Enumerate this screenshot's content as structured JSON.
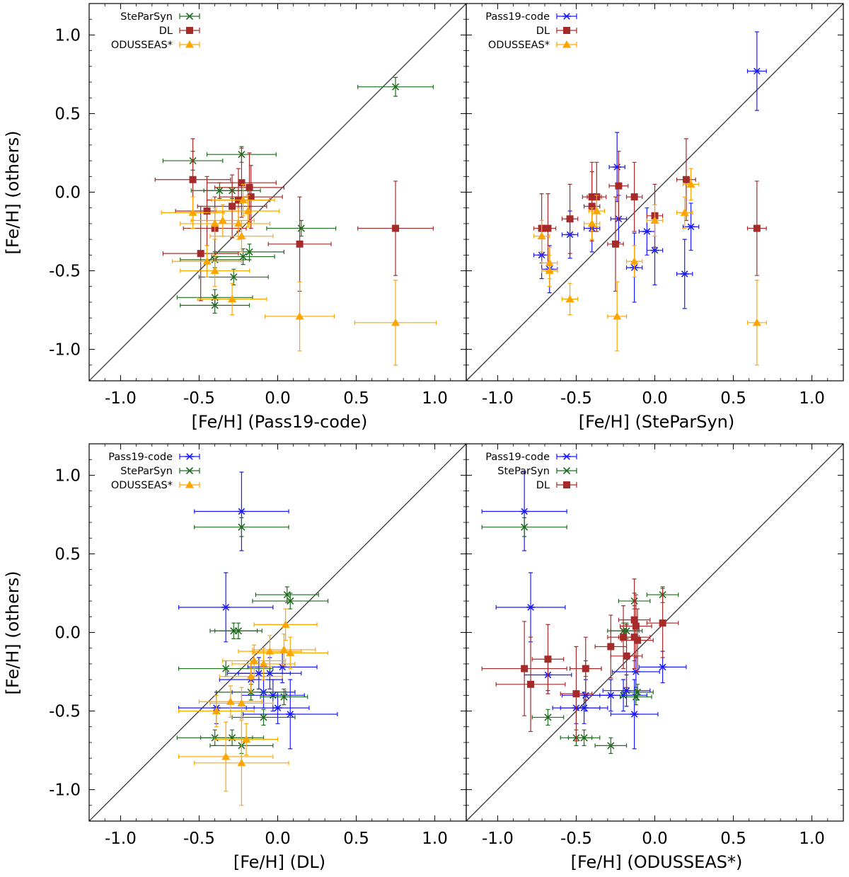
{
  "chart_data": [
    {
      "type": "scatter",
      "xlabel": "[Fe/H] (Pass19-code)",
      "ylabel": "[Fe/H] (others)",
      "xlim": [
        -1.2,
        1.2
      ],
      "ylim": [
        -1.2,
        1.2
      ],
      "xticks": [
        "-1.0",
        "-0.5",
        "0.0",
        "0.5",
        "1.0"
      ],
      "yticks": [
        "-1.0",
        "-0.5",
        "0.0",
        "0.5",
        "1.0"
      ],
      "identity_line": true,
      "legend_position": "top-left",
      "series": [
        {
          "name": "SteParSyn",
          "color": "#1f6b1f",
          "marker": "x",
          "points": [
            [
              0.75,
              0.67,
              0.24,
              0.06
            ],
            [
              -0.54,
              0.2,
              0.19,
              0.06
            ],
            [
              -0.23,
              0.24,
              0.22,
              0.05
            ],
            [
              -0.29,
              0.01,
              0.18,
              0.05
            ],
            [
              -0.37,
              0.01,
              0.18,
              0.05
            ],
            [
              0.15,
              -0.23,
              0.22,
              0.05
            ],
            [
              -0.4,
              -0.67,
              0.24,
              0.05
            ],
            [
              -0.4,
              -0.72,
              0.22,
              0.05
            ],
            [
              -0.28,
              -0.54,
              0.22,
              0.05
            ],
            [
              -0.18,
              -0.38,
              0.22,
              0.05
            ],
            [
              -0.22,
              -0.41,
              0.2,
              0.05
            ],
            [
              -0.4,
              -0.43,
              0.22,
              0.05
            ]
          ]
        },
        {
          "name": "DL",
          "color": "#a52a2a",
          "marker": "square",
          "points": [
            [
              -0.54,
              0.08,
              0.24,
              0.26
            ],
            [
              0.75,
              -0.23,
              0.24,
              0.3
            ],
            [
              0.14,
              -0.33,
              0.2,
              0.3
            ],
            [
              -0.49,
              -0.39,
              0.24,
              0.3
            ],
            [
              -0.23,
              0.06,
              0.22,
              0.22
            ],
            [
              -0.18,
              0.03,
              0.22,
              0.22
            ],
            [
              -0.29,
              -0.09,
              0.22,
              0.2
            ],
            [
              -0.25,
              -0.05,
              0.2,
              0.2
            ],
            [
              -0.4,
              -0.23,
              0.2,
              0.2
            ],
            [
              -0.17,
              -0.03,
              0.2,
              0.2
            ],
            [
              -0.45,
              -0.12,
              0.2,
              0.22
            ]
          ]
        },
        {
          "name": "ODUSSEAS*",
          "color": "#ffa500",
          "marker": "triangle",
          "points": [
            [
              0.75,
              -0.83,
              0.26,
              0.27
            ],
            [
              0.14,
              -0.79,
              0.22,
              0.22
            ],
            [
              -0.54,
              -0.13,
              0.2,
              0.1
            ],
            [
              -0.45,
              -0.44,
              0.22,
              0.1
            ],
            [
              -0.4,
              -0.5,
              0.22,
              0.1
            ],
            [
              -0.29,
              -0.68,
              0.22,
              0.1
            ],
            [
              -0.23,
              -0.28,
              0.2,
              0.1
            ],
            [
              -0.35,
              -0.18,
              0.2,
              0.1
            ],
            [
              -0.19,
              -0.12,
              0.2,
              0.1
            ],
            [
              -0.25,
              -0.2,
              0.2,
              0.1
            ],
            [
              -0.22,
              -0.05,
              0.2,
              0.1
            ],
            [
              -0.4,
              -0.2,
              0.22,
              0.1
            ]
          ]
        }
      ]
    },
    {
      "type": "scatter",
      "xlabel": "[Fe/H] (SteParSyn)",
      "ylabel": "",
      "xlim": [
        -1.2,
        1.2
      ],
      "ylim": [
        -1.2,
        1.2
      ],
      "xticks": [
        "-1.0",
        "-0.5",
        "0.0",
        "0.5",
        "1.0"
      ],
      "yticks": [],
      "identity_line": true,
      "legend_position": "top-left",
      "series": [
        {
          "name": "Pass19-code",
          "color": "#1a1aff",
          "marker": "star",
          "points": [
            [
              0.65,
              0.77,
              0.06,
              0.25
            ],
            [
              0.19,
              -0.52,
              0.05,
              0.22
            ],
            [
              0.23,
              -0.22,
              0.05,
              0.15
            ],
            [
              -0.24,
              0.16,
              0.05,
              0.22
            ],
            [
              -0.72,
              -0.4,
              0.05,
              0.15
            ],
            [
              -0.54,
              -0.27,
              0.05,
              0.15
            ],
            [
              -0.4,
              -0.23,
              0.05,
              0.15
            ],
            [
              -0.67,
              -0.49,
              0.05,
              0.15
            ],
            [
              0.0,
              -0.37,
              0.05,
              0.22
            ],
            [
              -0.05,
              -0.25,
              0.05,
              0.15
            ],
            [
              -0.13,
              -0.48,
              0.05,
              0.22
            ],
            [
              -0.23,
              -0.17,
              0.05,
              0.15
            ]
          ]
        },
        {
          "name": "DL",
          "color": "#a52a2a",
          "marker": "square",
          "points": [
            [
              0.2,
              0.08,
              0.06,
              0.26
            ],
            [
              0.65,
              -0.23,
              0.06,
              0.3
            ],
            [
              -0.23,
              0.04,
              0.06,
              0.22
            ],
            [
              -0.4,
              -0.03,
              0.06,
              0.22
            ],
            [
              -0.37,
              -0.03,
              0.06,
              0.22
            ],
            [
              -0.68,
              -0.23,
              0.05,
              0.22
            ],
            [
              -0.54,
              -0.17,
              0.05,
              0.22
            ],
            [
              -0.72,
              -0.23,
              0.05,
              0.22
            ],
            [
              -0.13,
              -0.03,
              0.05,
              0.22
            ],
            [
              0.0,
              -0.15,
              0.05,
              0.2
            ],
            [
              -0.25,
              -0.33,
              0.05,
              0.3
            ],
            [
              -0.4,
              -0.09,
              0.05,
              0.22
            ]
          ]
        },
        {
          "name": "ODUSSEAS*",
          "color": "#ffa500",
          "marker": "triangle",
          "points": [
            [
              0.65,
              -0.83,
              0.06,
              0.27
            ],
            [
              -0.24,
              -0.79,
              0.06,
              0.22
            ],
            [
              0.23,
              0.05,
              0.05,
              0.1
            ],
            [
              0.19,
              -0.13,
              0.05,
              0.1
            ],
            [
              -0.54,
              -0.68,
              0.05,
              0.1
            ],
            [
              -0.67,
              -0.45,
              0.05,
              0.1
            ],
            [
              -0.72,
              -0.28,
              0.05,
              0.1
            ],
            [
              -0.13,
              -0.44,
              0.05,
              0.1
            ],
            [
              -0.4,
              -0.2,
              0.05,
              0.1
            ],
            [
              0.0,
              -0.18,
              0.05,
              0.1
            ],
            [
              -0.67,
              -0.5,
              0.05,
              0.1
            ],
            [
              -0.37,
              -0.12,
              0.05,
              0.1
            ]
          ]
        }
      ]
    },
    {
      "type": "scatter",
      "xlabel": "[Fe/H] (DL)",
      "ylabel": "[Fe/H] (others)",
      "xlim": [
        -1.2,
        1.2
      ],
      "ylim": [
        -1.2,
        1.2
      ],
      "xticks": [
        "-1.0",
        "-0.5",
        "0.0",
        "0.5",
        "1.0"
      ],
      "yticks": [
        "-1.0",
        "-0.5",
        "0.0",
        "0.5",
        "1.0"
      ],
      "identity_line": true,
      "legend_position": "top-left",
      "series": [
        {
          "name": "Pass19-code",
          "color": "#1a1aff",
          "marker": "star",
          "points": [
            [
              -0.23,
              0.77,
              0.3,
              0.25
            ],
            [
              -0.33,
              0.16,
              0.3,
              0.22
            ],
            [
              0.08,
              -0.52,
              0.3,
              0.22
            ],
            [
              -0.39,
              -0.48,
              0.24,
              0.1
            ],
            [
              0.0,
              -0.48,
              0.2,
              0.1
            ],
            [
              -0.09,
              -0.38,
              0.2,
              0.1
            ],
            [
              -0.05,
              -0.26,
              0.2,
              0.1
            ],
            [
              -0.03,
              -0.4,
              0.2,
              0.1
            ],
            [
              0.03,
              -0.22,
              0.22,
              0.1
            ],
            [
              -0.17,
              -0.3,
              0.2,
              0.1
            ],
            [
              -0.12,
              -0.26,
              0.2,
              0.1
            ]
          ]
        },
        {
          "name": "SteParSyn",
          "color": "#1f6b1f",
          "marker": "x",
          "points": [
            [
              -0.23,
              0.67,
              0.3,
              0.06
            ],
            [
              0.06,
              0.24,
              0.2,
              0.05
            ],
            [
              0.08,
              0.2,
              0.24,
              0.05
            ],
            [
              -0.33,
              -0.23,
              0.3,
              0.05
            ],
            [
              -0.28,
              0.01,
              0.15,
              0.05
            ],
            [
              -0.25,
              0.01,
              0.15,
              0.05
            ],
            [
              -0.4,
              -0.67,
              0.24,
              0.05
            ],
            [
              -0.23,
              -0.72,
              0.2,
              0.05
            ],
            [
              0.04,
              -0.41,
              0.15,
              0.05
            ],
            [
              -0.17,
              -0.38,
              0.22,
              0.05
            ],
            [
              -0.09,
              -0.54,
              0.2,
              0.05
            ],
            [
              -0.29,
              -0.67,
              0.2,
              0.05
            ]
          ]
        },
        {
          "name": "ODUSSEAS*",
          "color": "#ffa500",
          "marker": "triangle",
          "points": [
            [
              -0.23,
              -0.83,
              0.3,
              0.27
            ],
            [
              -0.33,
              -0.79,
              0.3,
              0.22
            ],
            [
              -0.39,
              -0.5,
              0.24,
              0.1
            ],
            [
              -0.2,
              -0.68,
              0.2,
              0.1
            ],
            [
              0.08,
              -0.13,
              0.24,
              0.1
            ],
            [
              0.05,
              0.05,
              0.2,
              0.1
            ],
            [
              -0.15,
              -0.18,
              0.2,
              0.1
            ],
            [
              -0.05,
              -0.12,
              0.2,
              0.1
            ],
            [
              -0.09,
              -0.2,
              0.2,
              0.1
            ],
            [
              0.04,
              -0.11,
              0.2,
              0.1
            ],
            [
              -0.23,
              -0.45,
              0.2,
              0.1
            ],
            [
              -0.3,
              -0.44,
              0.2,
              0.1
            ],
            [
              -0.17,
              -0.28,
              0.2,
              0.1
            ]
          ]
        }
      ]
    },
    {
      "type": "scatter",
      "xlabel": "[Fe/H] (ODUSSEAS*)",
      "ylabel": "",
      "xlim": [
        -1.2,
        1.2
      ],
      "ylim": [
        -1.2,
        1.2
      ],
      "xticks": [
        "-1.0",
        "-0.5",
        "0.0",
        "0.5",
        "1.0"
      ],
      "yticks": [],
      "identity_line": true,
      "legend_position": "top-left",
      "series": [
        {
          "name": "Pass19-code",
          "color": "#1a1aff",
          "marker": "star",
          "points": [
            [
              -0.83,
              0.77,
              0.27,
              0.25
            ],
            [
              -0.79,
              0.16,
              0.22,
              0.22
            ],
            [
              -0.13,
              -0.52,
              0.15,
              0.22
            ],
            [
              0.05,
              -0.22,
              0.15,
              0.1
            ],
            [
              -0.68,
              -0.27,
              0.15,
              0.1
            ],
            [
              -0.5,
              -0.48,
              0.15,
              0.1
            ],
            [
              -0.45,
              -0.48,
              0.15,
              0.1
            ],
            [
              -0.2,
              -0.4,
              0.15,
              0.1
            ],
            [
              -0.18,
              -0.37,
              0.15,
              0.1
            ],
            [
              -0.12,
              -0.25,
              0.15,
              0.1
            ],
            [
              -0.44,
              -0.4,
              0.15,
              0.1
            ],
            [
              -0.28,
              -0.4,
              0.15,
              0.1
            ]
          ]
        },
        {
          "name": "SteParSyn",
          "color": "#1f6b1f",
          "marker": "x",
          "points": [
            [
              -0.83,
              0.67,
              0.27,
              0.06
            ],
            [
              0.05,
              0.24,
              0.1,
              0.05
            ],
            [
              -0.13,
              0.2,
              0.1,
              0.05
            ],
            [
              -0.68,
              -0.54,
              0.1,
              0.05
            ],
            [
              -0.45,
              -0.67,
              0.1,
              0.05
            ],
            [
              -0.5,
              -0.67,
              0.1,
              0.05
            ],
            [
              -0.28,
              -0.72,
              0.1,
              0.05
            ],
            [
              -0.18,
              0.01,
              0.1,
              0.05
            ],
            [
              -0.2,
              0.01,
              0.1,
              0.05
            ],
            [
              -0.12,
              -0.41,
              0.1,
              0.05
            ],
            [
              -0.44,
              -0.23,
              0.1,
              0.05
            ],
            [
              -0.11,
              -0.38,
              0.1,
              0.05
            ]
          ]
        },
        {
          "name": "DL",
          "color": "#a52a2a",
          "marker": "square",
          "points": [
            [
              -0.83,
              -0.23,
              0.27,
              0.3
            ],
            [
              -0.79,
              -0.33,
              0.22,
              0.3
            ],
            [
              0.05,
              0.06,
              0.1,
              0.22
            ],
            [
              -0.13,
              0.08,
              0.1,
              0.26
            ],
            [
              -0.68,
              -0.17,
              0.1,
              0.22
            ],
            [
              -0.5,
              -0.39,
              0.1,
              0.3
            ],
            [
              -0.44,
              -0.23,
              0.1,
              0.2
            ],
            [
              -0.28,
              -0.09,
              0.1,
              0.2
            ],
            [
              -0.2,
              -0.03,
              0.1,
              0.2
            ],
            [
              -0.13,
              -0.03,
              0.1,
              0.2
            ],
            [
              -0.18,
              -0.15,
              0.1,
              0.2
            ],
            [
              -0.12,
              0.04,
              0.1,
              0.2
            ],
            [
              -0.11,
              -0.05,
              0.1,
              0.2
            ]
          ]
        }
      ]
    }
  ]
}
